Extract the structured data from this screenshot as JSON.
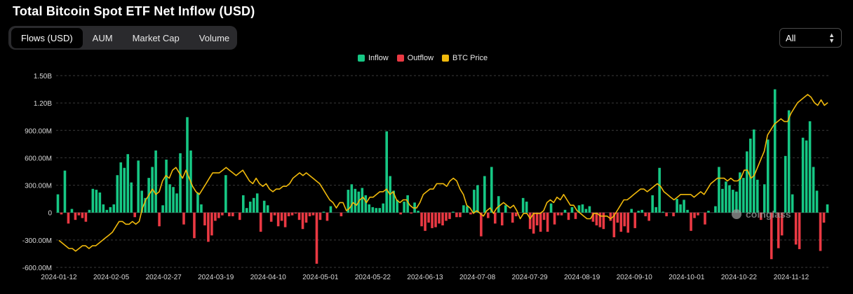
{
  "title": "Total Bitcoin Spot ETF Net Inflow (USD)",
  "tabs": [
    {
      "label": "Flows (USD)",
      "active": true
    },
    {
      "label": "AUM",
      "active": false
    },
    {
      "label": "Market Cap",
      "active": false
    },
    {
      "label": "Volume",
      "active": false
    }
  ],
  "range_select": {
    "value": "All",
    "icon": "chevron-updown-icon"
  },
  "legend": [
    {
      "label": "Inflow",
      "color": "#16c784"
    },
    {
      "label": "Outflow",
      "color": "#ea3943"
    },
    {
      "label": "BTC Price",
      "color": "#f0b90b"
    }
  ],
  "watermark": "coinglass",
  "chart_data": {
    "type": "bar",
    "y_ticks": [
      "1.50B",
      "1.20B",
      "900.00M",
      "600.00M",
      "300.00M",
      "0",
      "-300.00M",
      "-600.00M"
    ],
    "y_tick_values": [
      1500,
      1200,
      900,
      600,
      300,
      0,
      -300,
      -600
    ],
    "ylim": [
      -600,
      1500
    ],
    "y_unit": "million USD",
    "x_tick_labels": [
      "2024-01-12",
      "2024-02-05",
      "2024-02-27",
      "2024-03-19",
      "2024-04-10",
      "2024-05-01",
      "2024-05-22",
      "2024-06-13",
      "2024-07-08",
      "2024-07-29",
      "2024-08-19",
      "2024-09-10",
      "2024-10-01",
      "2024-10-22",
      "2024-11-12"
    ],
    "grid": true,
    "legend_position": "top-center",
    "series": [
      {
        "name": "Inflow / Outflow",
        "kind": "bar",
        "values": [
          200,
          -20,
          460,
          -120,
          40,
          -80,
          -30,
          -60,
          -100,
          30,
          260,
          250,
          220,
          90,
          30,
          60,
          90,
          410,
          550,
          490,
          640,
          330,
          -50,
          570,
          240,
          160,
          380,
          500,
          680,
          -150,
          80,
          580,
          310,
          280,
          210,
          650,
          -130,
          1045,
          680,
          -280,
          220,
          90,
          -140,
          -320,
          -250,
          -90,
          -60,
          -30,
          410,
          -40,
          -40,
          0,
          -80,
          190,
          50,
          120,
          160,
          210,
          -210,
          130,
          80,
          -100,
          -30,
          -150,
          -90,
          -160,
          -40,
          -30,
          -10,
          -80,
          -180,
          -110,
          -40,
          -30,
          -560,
          -80,
          10,
          -90,
          70,
          0,
          0,
          -40,
          0,
          250,
          310,
          260,
          230,
          270,
          190,
          90,
          60,
          50,
          50,
          100,
          890,
          400,
          240,
          140,
          -20,
          120,
          190,
          -10,
          110,
          20,
          -150,
          -200,
          -110,
          -170,
          -160,
          -120,
          -140,
          -90,
          -70,
          10,
          -50,
          -50,
          80,
          70,
          -20,
          250,
          300,
          -260,
          400,
          -60,
          500,
          -120,
          180,
          -140,
          80,
          0,
          -110,
          -40,
          0,
          160,
          120,
          -180,
          -230,
          -140,
          -210,
          -80,
          -210,
          100,
          -130,
          -30,
          -30,
          30,
          -80,
          60,
          -70,
          80,
          90,
          40,
          70,
          -100,
          -140,
          -160,
          -180,
          0,
          -90,
          -270,
          -110,
          -210,
          -150,
          -220,
          40,
          -170,
          20,
          30,
          -40,
          -90,
          190,
          60,
          490,
          10,
          -40,
          0,
          -40,
          150,
          90,
          140,
          30,
          -200,
          -60,
          -30,
          0,
          -130,
          20,
          0,
          70,
          500,
          260,
          340,
          300,
          250,
          230,
          440,
          380,
          670,
          810,
          910,
          360,
          -80,
          310,
          800,
          -510,
          1350,
          -390,
          -250,
          620,
          1120,
          200,
          -350,
          -400,
          820,
          790,
          1000,
          500,
          240,
          -420,
          -110,
          90
        ]
      },
      {
        "name": "BTC Price",
        "kind": "line",
        "unit": "thousand USD",
        "values": [
          45,
          44,
          43,
          42,
          42,
          41,
          42,
          43,
          43,
          42,
          43,
          43,
          44,
          45,
          46,
          47,
          48,
          50,
          52,
          52,
          51,
          51,
          52,
          51,
          52,
          57,
          60,
          62,
          64,
          62,
          63,
          67,
          69,
          68,
          71,
          72,
          70,
          68,
          71,
          68,
          65,
          63,
          62,
          64,
          66,
          68,
          70,
          70,
          70,
          71,
          72,
          71,
          70,
          69,
          70,
          71,
          69,
          67,
          66,
          68,
          66,
          65,
          66,
          64,
          63,
          64,
          64,
          65,
          65,
          66,
          68,
          69,
          70,
          69,
          70,
          69,
          68,
          67,
          66,
          64,
          62,
          60,
          59,
          57,
          59,
          59,
          56,
          57,
          59,
          58,
          60,
          61,
          59,
          61,
          61,
          62,
          63,
          63,
          64,
          62,
          63,
          60,
          59,
          60,
          60,
          58,
          57,
          57,
          59,
          62,
          63,
          64,
          64,
          66,
          66,
          66,
          65,
          67,
          68,
          67,
          64,
          62,
          58,
          57,
          55,
          56,
          55,
          54,
          56,
          57,
          55,
          57,
          58,
          59,
          58,
          57,
          58,
          56,
          53,
          55,
          55,
          53,
          55,
          55,
          55,
          56,
          59,
          60,
          59,
          61,
          60,
          62,
          60,
          58,
          58,
          56,
          55,
          54,
          53,
          53,
          55,
          55,
          54,
          54,
          54,
          53,
          54,
          56,
          58,
          60,
          60,
          61,
          62,
          63,
          64,
          64,
          63,
          64,
          65,
          66,
          65,
          63,
          62,
          61,
          60,
          61,
          62,
          62,
          62,
          62,
          61,
          62,
          63,
          62,
          64,
          66,
          67,
          68,
          68,
          68,
          67,
          68,
          67,
          67,
          68,
          71,
          71,
          68,
          69,
          72,
          75,
          78,
          84,
          86,
          88,
          89,
          90,
          89,
          89,
          92,
          94,
          96,
          97,
          98,
          99,
          98,
          96,
          95,
          97,
          95,
          96
        ]
      }
    ]
  }
}
